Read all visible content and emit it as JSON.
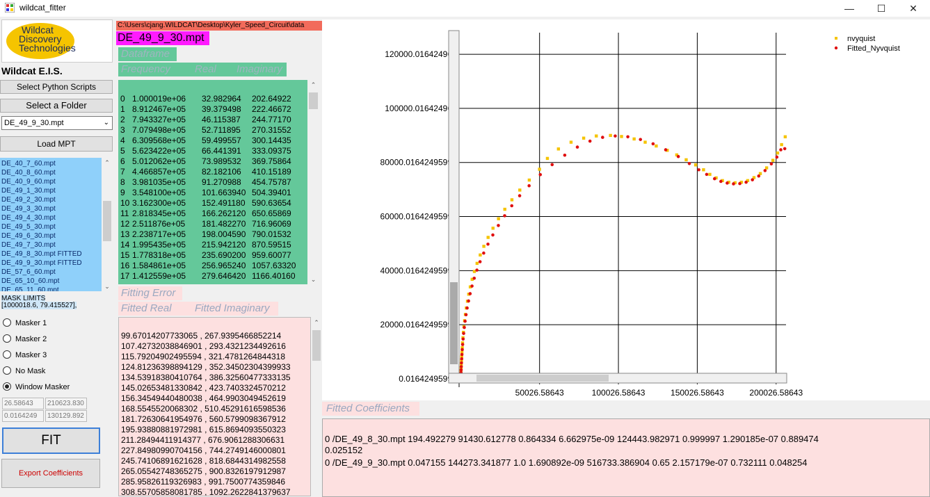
{
  "window": {
    "title": "wildcat_fitter",
    "minimize": "—",
    "maximize": "☐",
    "close": "✕"
  },
  "logo": {
    "line1": "Wildcat",
    "line2": "Discovery",
    "line3": "Technologies"
  },
  "app_heading": "Wildcat E.I.S.",
  "buttons": {
    "select_scripts": "Select Python Scripts",
    "select_folder": "Select a Folder",
    "load_mpt": "Load MPT",
    "fit": "FIT",
    "export": "Export Coefficients"
  },
  "file_select": {
    "value": "DE_49_9_30.mpt"
  },
  "file_list": [
    "DE_40_7_60.mpt",
    "DE_40_8_60.mpt",
    "DE_40_9_60.mpt",
    "DE_49_1_30.mpt",
    "DE_49_2_30.mpt",
    "DE_49_3_30.mpt",
    "DE_49_4_30.mpt",
    "DE_49_5_30.mpt",
    "DE_49_6_30.mpt",
    "DE_49_7_30.mpt",
    "DE_49_8_30.mpt FITTED",
    "DE_49_9_30.mpt FITTED",
    "DE_57_6_60.mpt",
    "DE_65_10_60.mpt",
    "DE_65_11_60.mpt"
  ],
  "mask": {
    "title": "MASK LIMITS",
    "value": "[1000018.6, 79.415527],",
    "options": [
      "Masker 1",
      "Masker 2",
      "Masker 3",
      "No Mask",
      "Window Masker"
    ],
    "selected_index": 4,
    "limits": [
      "26.58643",
      "210623.830",
      "0.0164249",
      "130129.892"
    ]
  },
  "path": "C:\\Users\\cjang.WILDCAT\\Desktop\\Kyler_Speed_Circuit\\data",
  "current_file": "DE_49_9_30.mpt",
  "dataframe_label": "Dataframe",
  "columns": {
    "frequency": "Frequency",
    "real": "Real",
    "imaginary": "Imaginary"
  },
  "data_rows": [
    [
      "0",
      "1.000019e+06",
      "32.982964",
      "202.64922"
    ],
    [
      "1",
      "8.912467e+05",
      "39.379498",
      "222.46672"
    ],
    [
      "2",
      "7.943327e+05",
      "46.115387",
      "244.77170"
    ],
    [
      "3",
      "7.079498e+05",
      "52.711895",
      "270.31552"
    ],
    [
      "4",
      "6.309568e+05",
      "59.499557",
      "300.14435"
    ],
    [
      "5",
      "5.623422e+05",
      "66.441391",
      "333.09375"
    ],
    [
      "6",
      "5.012062e+05",
      "73.989532",
      "369.75864"
    ],
    [
      "7",
      "4.466857e+05",
      "82.182106",
      "410.15189"
    ],
    [
      "8",
      "3.981035e+05",
      "91.270988",
      "454.75787"
    ],
    [
      "9",
      "3.548100e+05",
      "101.663940",
      "504.39401"
    ],
    [
      "10",
      "3.162300e+05",
      "152.491180",
      "590.63654"
    ],
    [
      "11",
      "2.818345e+05",
      "166.262120",
      "650.65869"
    ],
    [
      "12",
      "2.511876e+05",
      "181.482270",
      "716.96069"
    ],
    [
      "13",
      "2.238717e+05",
      "198.004590",
      "790.01532"
    ],
    [
      "14",
      "1.995435e+05",
      "215.942120",
      "870.59515"
    ],
    [
      "15",
      "1.778318e+05",
      "235.690200",
      "959.60077"
    ],
    [
      "16",
      "1.584861e+05",
      "256.965240",
      "1057.63320"
    ],
    [
      "17",
      "1.412559e+05",
      "279.646420",
      "1166.40160"
    ]
  ],
  "fitting_error_label": "Fitting Error",
  "fitted_columns": {
    "real": "Fitted Real",
    "imaginary": "Fitted Imaginary"
  },
  "fitted_rows": [
    "99.67014207733065 , 267.9395466852214",
    "107.42732038846901 , 293.4321234492616",
    "115.79204902495594 , 321.4781264844318",
    "124.81236398894129 , 352.34502304399933",
    "134.53918380410764 , 386.32560477333135",
    "145.02653481330842 , 423.7403324570212",
    "156.34549440480038 , 464.9903049452619",
    "168.5545520068302 , 510.45291616598536",
    "181.72630641954976 , 560.5799098367912",
    "195.93880881972981 , 615.8694093550323",
    "211.28494411914377 , 676.9061288306631",
    "227.84980990704156 , 744.2749146000801",
    "245.74106891621628 , 818.6844314982558",
    "265.05542748365275 , 900.8326197912987",
    "285.95826119326983 , 991.7500774359846",
    "308.55705858081785 , 1092.2622841379637"
  ],
  "chart_data": {
    "type": "scatter",
    "title": "",
    "xlabel": "",
    "ylabel": "",
    "xlim": [
      -1000,
      206300
    ],
    "ylim": [
      0,
      128000
    ],
    "x_ticks": [
      50026.58643,
      100026.58643,
      150026.58643,
      200026.58643
    ],
    "x_tick_labels": [
      "50026.58643",
      "100026.58643",
      "150026.58643",
      "200026.58643"
    ],
    "y_ticks": [
      0.0164249599,
      20000.0164249599,
      40000.0164249599,
      60000.0164249599,
      80000.0164249599,
      100000.01642496,
      120000.01642496
    ],
    "y_tick_labels": [
      "0.0164249599",
      "20000.0164249599",
      "40000.0164249599",
      "60000.0164249599",
      "80000.0164249599",
      "100000.01642496",
      "120000.01642496"
    ],
    "grid": true,
    "legend_position": "top-right",
    "series": [
      {
        "name": "nvyquist",
        "color": "#f5c400",
        "x": [
          33,
          60,
          100,
          150,
          220,
          300,
          400,
          520,
          660,
          820,
          1000,
          1200,
          1450,
          1750,
          2100,
          2500,
          3000,
          3600,
          4300,
          5100,
          6100,
          7300,
          8700,
          10400,
          12400,
          14700,
          17400,
          20500,
          24000,
          28000,
          32500,
          37500,
          43500,
          50000,
          55000,
          62000,
          70000,
          78000,
          86000,
          95000,
          102000,
          110000,
          117000,
          124000,
          131000,
          137000,
          143000,
          149000,
          154000,
          158000,
          162000,
          166000,
          170000,
          174000,
          178000,
          182000,
          186000,
          190000,
          194000,
          198000,
          201000,
          203500,
          205800
        ],
        "y": [
          203,
          700,
          1300,
          2000,
          2900,
          4000,
          5300,
          6700,
          8200,
          9800,
          11500,
          13300,
          15200,
          17200,
          19300,
          21500,
          23800,
          26200,
          28700,
          31300,
          34000,
          36800,
          39700,
          42700,
          45800,
          49000,
          52300,
          55700,
          59200,
          62700,
          66200,
          69800,
          73500,
          77500,
          81500,
          85000,
          87500,
          89000,
          89800,
          90000,
          89600,
          88700,
          87500,
          86100,
          84500,
          82800,
          81000,
          79100,
          77300,
          75600,
          74300,
          73300,
          72700,
          72500,
          72700,
          73300,
          74400,
          75900,
          78000,
          80800,
          83500,
          86600,
          89500
        ]
      },
      {
        "name": "Fitted_Nyvquist",
        "color": "#e01010",
        "x": [
          99,
          130,
          170,
          220,
          290,
          380,
          500,
          640,
          800,
          1000,
          1250,
          1550,
          1900,
          2300,
          2800,
          3400,
          4100,
          5000,
          6000,
          7200,
          8600,
          10300,
          12300,
          14600,
          17300,
          20400,
          23900,
          27900,
          32400,
          37400,
          43400,
          50500,
          58000,
          66000,
          74000,
          82000,
          90000,
          98000,
          106000,
          114000,
          122000,
          130000,
          138000,
          145000,
          151000,
          156000,
          161000,
          165000,
          169000,
          173000,
          177000,
          181000,
          185000,
          189000,
          193000,
          197000,
          200500,
          203000,
          205500
        ],
        "y": [
          268,
          800,
          1500,
          2300,
          3300,
          4500,
          5900,
          7400,
          9000,
          10800,
          12700,
          14700,
          16800,
          19000,
          21300,
          23700,
          26200,
          28800,
          31500,
          34300,
          37200,
          40200,
          43300,
          46500,
          49800,
          53200,
          56700,
          60300,
          64000,
          67700,
          71400,
          75500,
          79200,
          82700,
          85700,
          87900,
          89300,
          89800,
          89500,
          88500,
          86900,
          84700,
          82200,
          79600,
          77300,
          75600,
          74000,
          73000,
          72400,
          72100,
          72200,
          72700,
          73600,
          75000,
          77000,
          79500,
          82000,
          84700,
          85100
        ]
      }
    ]
  },
  "coefficients_label": "Fitted Coefficients",
  "coefficients": [
    "0  /DE_49_8_30.mpt  194.492279  91430.612778  0.864334  6.662975e-09  124443.982971  0.999997  1.290185e-07  0.889474",
    "0.025152",
    "0  /DE_49_9_30.mpt  0.047155  144273.341877    1.0  1.690892e-09  516733.386904    0.65  2.157179e-07  0.732111  0.048254"
  ]
}
